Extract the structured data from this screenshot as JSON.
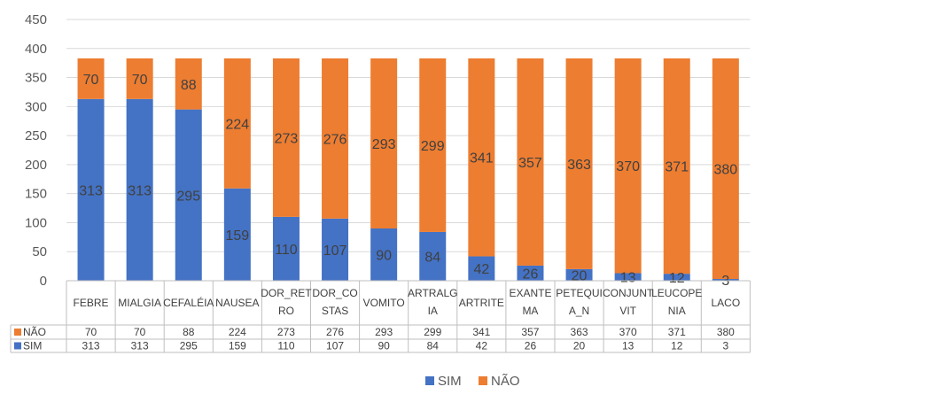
{
  "chart_data": {
    "type": "bar",
    "stacked": true,
    "categories": [
      "FEBRE",
      "MIALGIA",
      "CEFALÉIA",
      "NAUSEA",
      "DOR_RETRO",
      "DOR_COSTAS",
      "VOMITO",
      "ARTRALGIA",
      "ARTRITE",
      "EXANTEMA",
      "PETEQUIA_N",
      "CONJUNTVIT",
      "LEUCOPENIA",
      "LACO"
    ],
    "category_display": [
      [
        "FEBRE"
      ],
      [
        "MIALGIA"
      ],
      [
        "CEFALÉIA"
      ],
      [
        "NAUSEA"
      ],
      [
        "DOR_RET",
        "RO"
      ],
      [
        "DOR_CO",
        "STAS"
      ],
      [
        "VOMITO"
      ],
      [
        "ARTRALG",
        "IA"
      ],
      [
        "ARTRITE"
      ],
      [
        "EXANTE",
        "MA"
      ],
      [
        "PETEQUI",
        "A_N"
      ],
      [
        "CONJUNT",
        "VIT"
      ],
      [
        "LEUCOPE",
        "NIA"
      ],
      [
        "LACO"
      ]
    ],
    "series": [
      {
        "name": "SIM",
        "color": "#4472C4",
        "values": [
          313,
          313,
          295,
          159,
          110,
          107,
          90,
          84,
          42,
          26,
          20,
          13,
          12,
          3
        ]
      },
      {
        "name": "NÃO",
        "color": "#ED7D31",
        "values": [
          70,
          70,
          88,
          224,
          273,
          276,
          293,
          299,
          341,
          357,
          363,
          370,
          371,
          380
        ]
      }
    ],
    "ylim": [
      0,
      450
    ],
    "yticks": [
      0,
      50,
      100,
      150,
      200,
      250,
      300,
      350,
      400,
      450
    ],
    "grid": true,
    "data_table": true,
    "table_row_order": [
      "NÃO",
      "SIM"
    ],
    "legend_order": [
      "SIM",
      "NÃO"
    ],
    "legend_position": "bottom",
    "title": "",
    "xlabel": "",
    "ylabel": ""
  }
}
